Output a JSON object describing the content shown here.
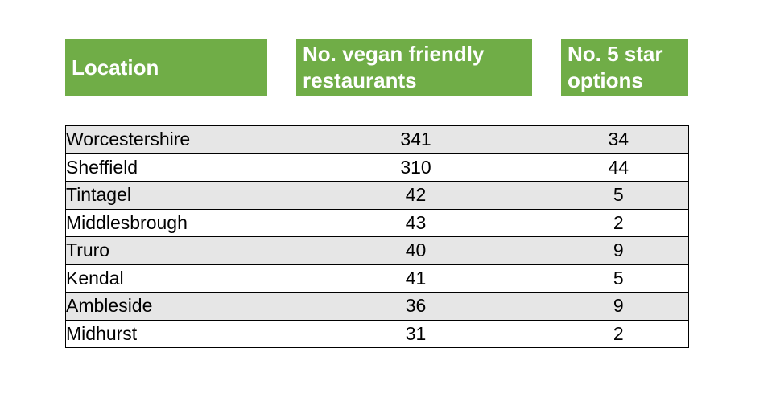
{
  "chart_data": {
    "type": "table",
    "title": "",
    "columns": [
      "Location",
      "No. vegan friendly restaurants",
      "No. 5 star options"
    ],
    "rows": [
      [
        "Worcestershire",
        341,
        34
      ],
      [
        "Sheffield",
        310,
        44
      ],
      [
        "Tintagel",
        42,
        5
      ],
      [
        "Middlesbrough",
        43,
        2
      ],
      [
        "Truro",
        40,
        9
      ],
      [
        "Kendal",
        41,
        5
      ],
      [
        "Ambleside",
        36,
        9
      ],
      [
        "Midhurst",
        31,
        2
      ]
    ],
    "layout": {
      "header_style": "separate green blocks with white gaps",
      "row_striping": "alternating grey/white starting grey",
      "grid": "horizontal row borders + outer border, no internal vertical borders"
    }
  },
  "colors": {
    "header_green": "#70AD47",
    "header_text": "#FFFFFF",
    "row_alt_bg": "#E6E6E6",
    "row_bg": "#FFFFFF",
    "border": "#000000",
    "body_text": "#000000"
  }
}
